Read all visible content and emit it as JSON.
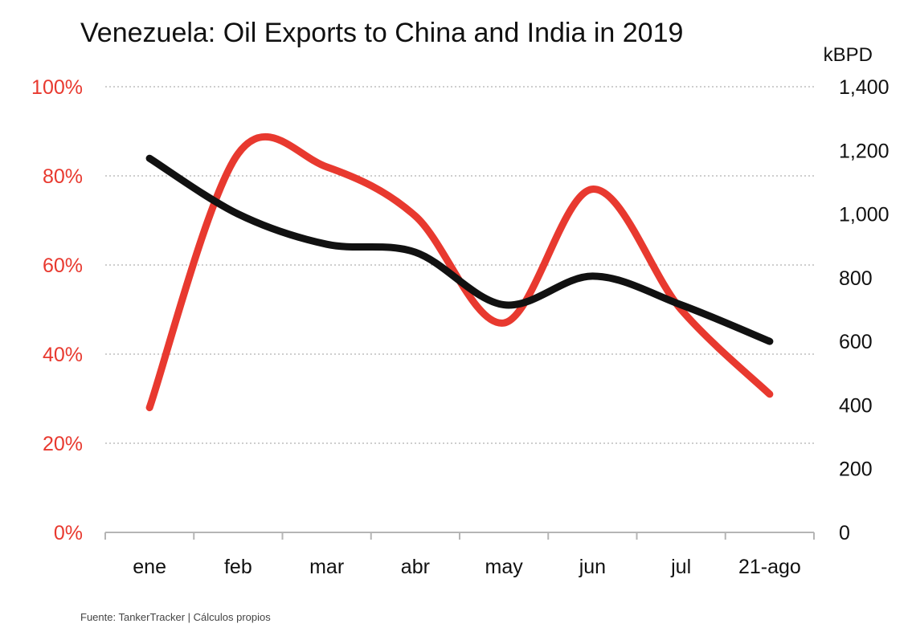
{
  "chart_data": {
    "type": "line",
    "title": "Venezuela: Oil Exports to China and India in 2019",
    "source": "Fuente: TankerTracker | Cálculos propios",
    "categories": [
      "ene",
      "feb",
      "mar",
      "abr",
      "may",
      "jun",
      "jul",
      "21-ago"
    ],
    "grid": true,
    "left_axis": {
      "ticks": [
        "0%",
        "20%",
        "40%",
        "60%",
        "80%",
        "100%"
      ],
      "ylim": [
        0,
        100
      ],
      "color": "#e8392f"
    },
    "right_axis": {
      "unit": "kBPD",
      "ticks": [
        "0",
        "200",
        "400",
        "600",
        "800",
        "1,000",
        "1,200",
        "1,400"
      ],
      "ylim": [
        0,
        1400
      ]
    },
    "series": [
      {
        "axis": "left",
        "color": "#e8392f",
        "values": [
          28,
          85,
          82,
          71,
          47,
          77,
          50,
          31
        ]
      },
      {
        "axis": "right",
        "color": "#111111",
        "values": [
          1175,
          1000,
          905,
          880,
          715,
          805,
          715,
          600
        ]
      }
    ]
  }
}
